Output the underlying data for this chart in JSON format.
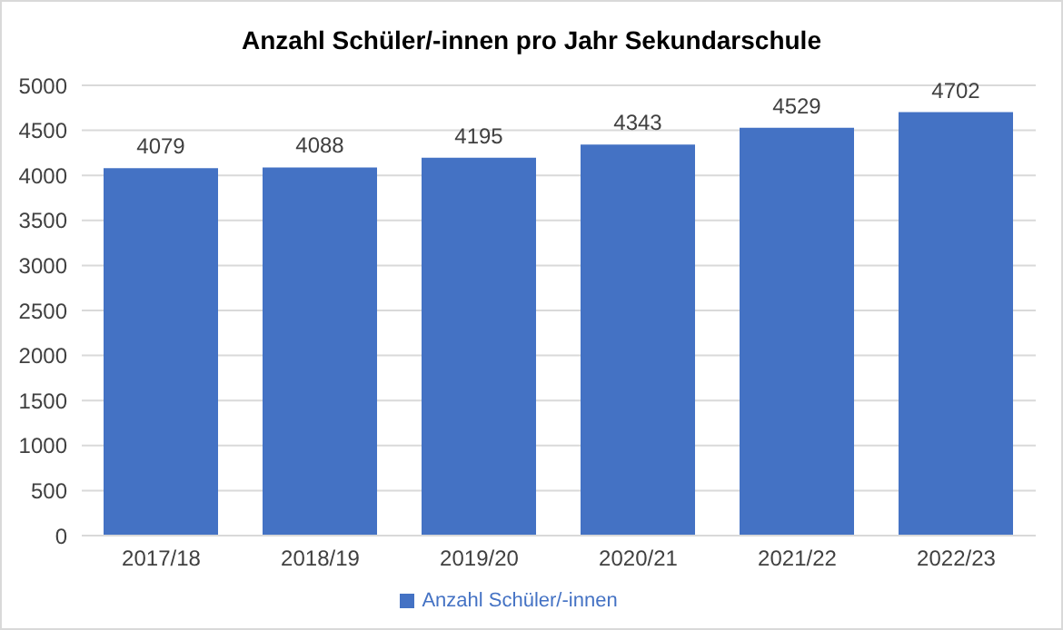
{
  "chart_data": {
    "type": "bar",
    "title": "Anzahl Schüler/-innen pro Jahr Sekundarschule",
    "categories": [
      "2017/18",
      "2018/19",
      "2019/20",
      "2020/21",
      "2021/22",
      "2022/23"
    ],
    "series": [
      {
        "name": "Anzahl Schüler/-innen",
        "color": "#4472c4",
        "values": [
          4079,
          4088,
          4195,
          4343,
          4529,
          4702
        ]
      }
    ],
    "ylim": [
      0,
      5000
    ],
    "yticks": [
      0,
      500,
      1000,
      1500,
      2000,
      2500,
      3000,
      3500,
      4000,
      4500,
      5000
    ],
    "grid": "y",
    "legend": "bottom",
    "data_labels": true
  }
}
